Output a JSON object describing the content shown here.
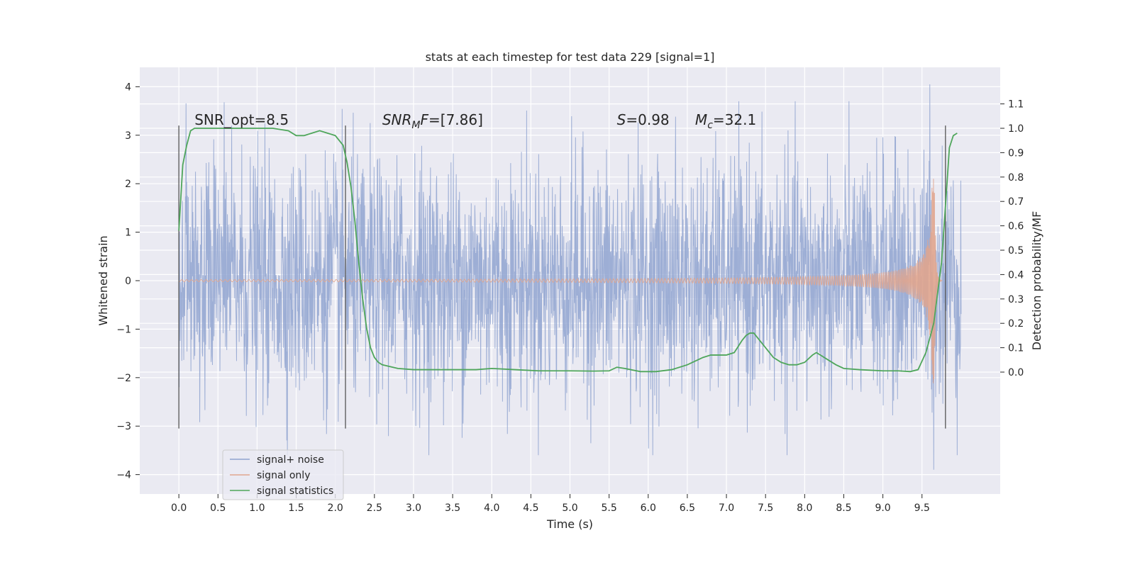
{
  "chart_data": {
    "type": "line",
    "title": "stats at each timestep for test data 229 [signal=1]",
    "xlabel": "Time (s)",
    "ylabel": "Whitened strain",
    "ylabel_right": "Detection probability/MF",
    "xlim": [
      -0.5,
      10.5
    ],
    "ylim": [
      -4.4,
      4.4
    ],
    "ylim_right": [
      -0.5,
      1.25
    ],
    "x_ticks": [
      0.0,
      0.5,
      1.0,
      1.5,
      2.0,
      2.5,
      3.0,
      3.5,
      4.0,
      4.5,
      5.0,
      5.5,
      6.0,
      6.5,
      7.0,
      7.5,
      8.0,
      8.5,
      9.0,
      9.5
    ],
    "x_tick_labels": [
      "0.0",
      "0.5",
      "1.0",
      "1.5",
      "2.0",
      "2.5",
      "3.0",
      "3.5",
      "4.0",
      "4.5",
      "5.0",
      "5.5",
      "6.0",
      "6.5",
      "7.0",
      "7.5",
      "8.0",
      "8.5",
      "9.0",
      "9.5"
    ],
    "y_ticks": [
      -4,
      -3,
      -2,
      -1,
      0,
      1,
      2,
      3,
      4
    ],
    "y_tick_labels": [
      "−4",
      "−3",
      "−2",
      "−1",
      "0",
      "1",
      "2",
      "3",
      "4"
    ],
    "y_right_ticks": [
      0.0,
      0.1,
      0.2,
      0.3,
      0.4,
      0.5,
      0.6,
      0.7,
      0.8,
      0.9,
      1.0,
      1.1
    ],
    "y_right_tick_labels": [
      "0.0",
      "0.1",
      "0.2",
      "0.3",
      "0.4",
      "0.5",
      "0.6",
      "0.7",
      "0.8",
      "0.9",
      "1.0",
      "1.1"
    ],
    "grid": true,
    "legend_position": "lower-left",
    "legend": [
      "signal+ noise",
      "signal only",
      "signal statistics"
    ],
    "annotations": [
      {
        "text": "SNR_opt=8.5",
        "x": 0.2,
        "y": 3.2
      },
      {
        "text": "SNR_MF=[7.86]",
        "x": 2.6,
        "y": 3.2
      },
      {
        "text": "S=0.98",
        "x": 5.6,
        "y": 3.2
      },
      {
        "text": "M_c=32.1",
        "x": 6.6,
        "y": 3.2
      }
    ],
    "vertical_lines": [
      0.0,
      2.13,
      9.8
    ],
    "vertical_line_range": [
      -3.05,
      3.2
    ],
    "series": [
      {
        "name": "signal+ noise",
        "axis": "left",
        "color": "#8fa3d0",
        "x_range": [
          0.0,
          10.0
        ],
        "envelope_typical": 2.0,
        "peak_max": 4.05,
        "peak_min": -3.9
      },
      {
        "name": "signal only",
        "axis": "left",
        "color": "#e0a58e",
        "x_range": [
          0.0,
          9.66
        ],
        "amplitude_start": 0.02,
        "amplitude_peak": 2.2,
        "merger_time": 9.66
      },
      {
        "name": "signal statistics",
        "axis": "right",
        "color": "#4fa65b",
        "x": [
          0.0,
          0.05,
          0.1,
          0.15,
          0.2,
          0.4,
          0.6,
          0.8,
          1.0,
          1.2,
          1.4,
          1.5,
          1.6,
          1.7,
          1.8,
          1.9,
          2.0,
          2.1,
          2.15,
          2.2,
          2.25,
          2.3,
          2.35,
          2.4,
          2.45,
          2.5,
          2.55,
          2.6,
          2.8,
          3.0,
          3.2,
          3.5,
          3.8,
          4.0,
          4.3,
          4.6,
          5.0,
          5.3,
          5.5,
          5.6,
          5.7,
          5.9,
          6.1,
          6.3,
          6.5,
          6.7,
          6.8,
          7.0,
          7.1,
          7.2,
          7.25,
          7.3,
          7.35,
          7.4,
          7.5,
          7.6,
          7.7,
          7.8,
          7.9,
          8.0,
          8.1,
          8.15,
          8.2,
          8.3,
          8.4,
          8.5,
          8.7,
          9.0,
          9.2,
          9.35,
          9.45,
          9.55,
          9.65,
          9.75,
          9.8,
          9.85,
          9.9,
          9.95
        ],
        "values": [
          0.58,
          0.85,
          0.93,
          0.99,
          1.0,
          1.0,
          1.0,
          1.0,
          1.0,
          1.0,
          0.99,
          0.97,
          0.97,
          0.98,
          0.99,
          0.98,
          0.97,
          0.93,
          0.86,
          0.76,
          0.62,
          0.45,
          0.3,
          0.18,
          0.1,
          0.06,
          0.04,
          0.03,
          0.015,
          0.01,
          0.01,
          0.01,
          0.01,
          0.015,
          0.01,
          0.005,
          0.005,
          0.004,
          0.005,
          0.02,
          0.015,
          0.002,
          0.002,
          0.01,
          0.03,
          0.06,
          0.07,
          0.07,
          0.08,
          0.13,
          0.15,
          0.16,
          0.16,
          0.14,
          0.1,
          0.06,
          0.04,
          0.03,
          0.03,
          0.04,
          0.07,
          0.08,
          0.07,
          0.05,
          0.03,
          0.015,
          0.01,
          0.005,
          0.005,
          0.002,
          0.01,
          0.08,
          0.2,
          0.45,
          0.68,
          0.92,
          0.97,
          0.98
        ]
      }
    ]
  }
}
